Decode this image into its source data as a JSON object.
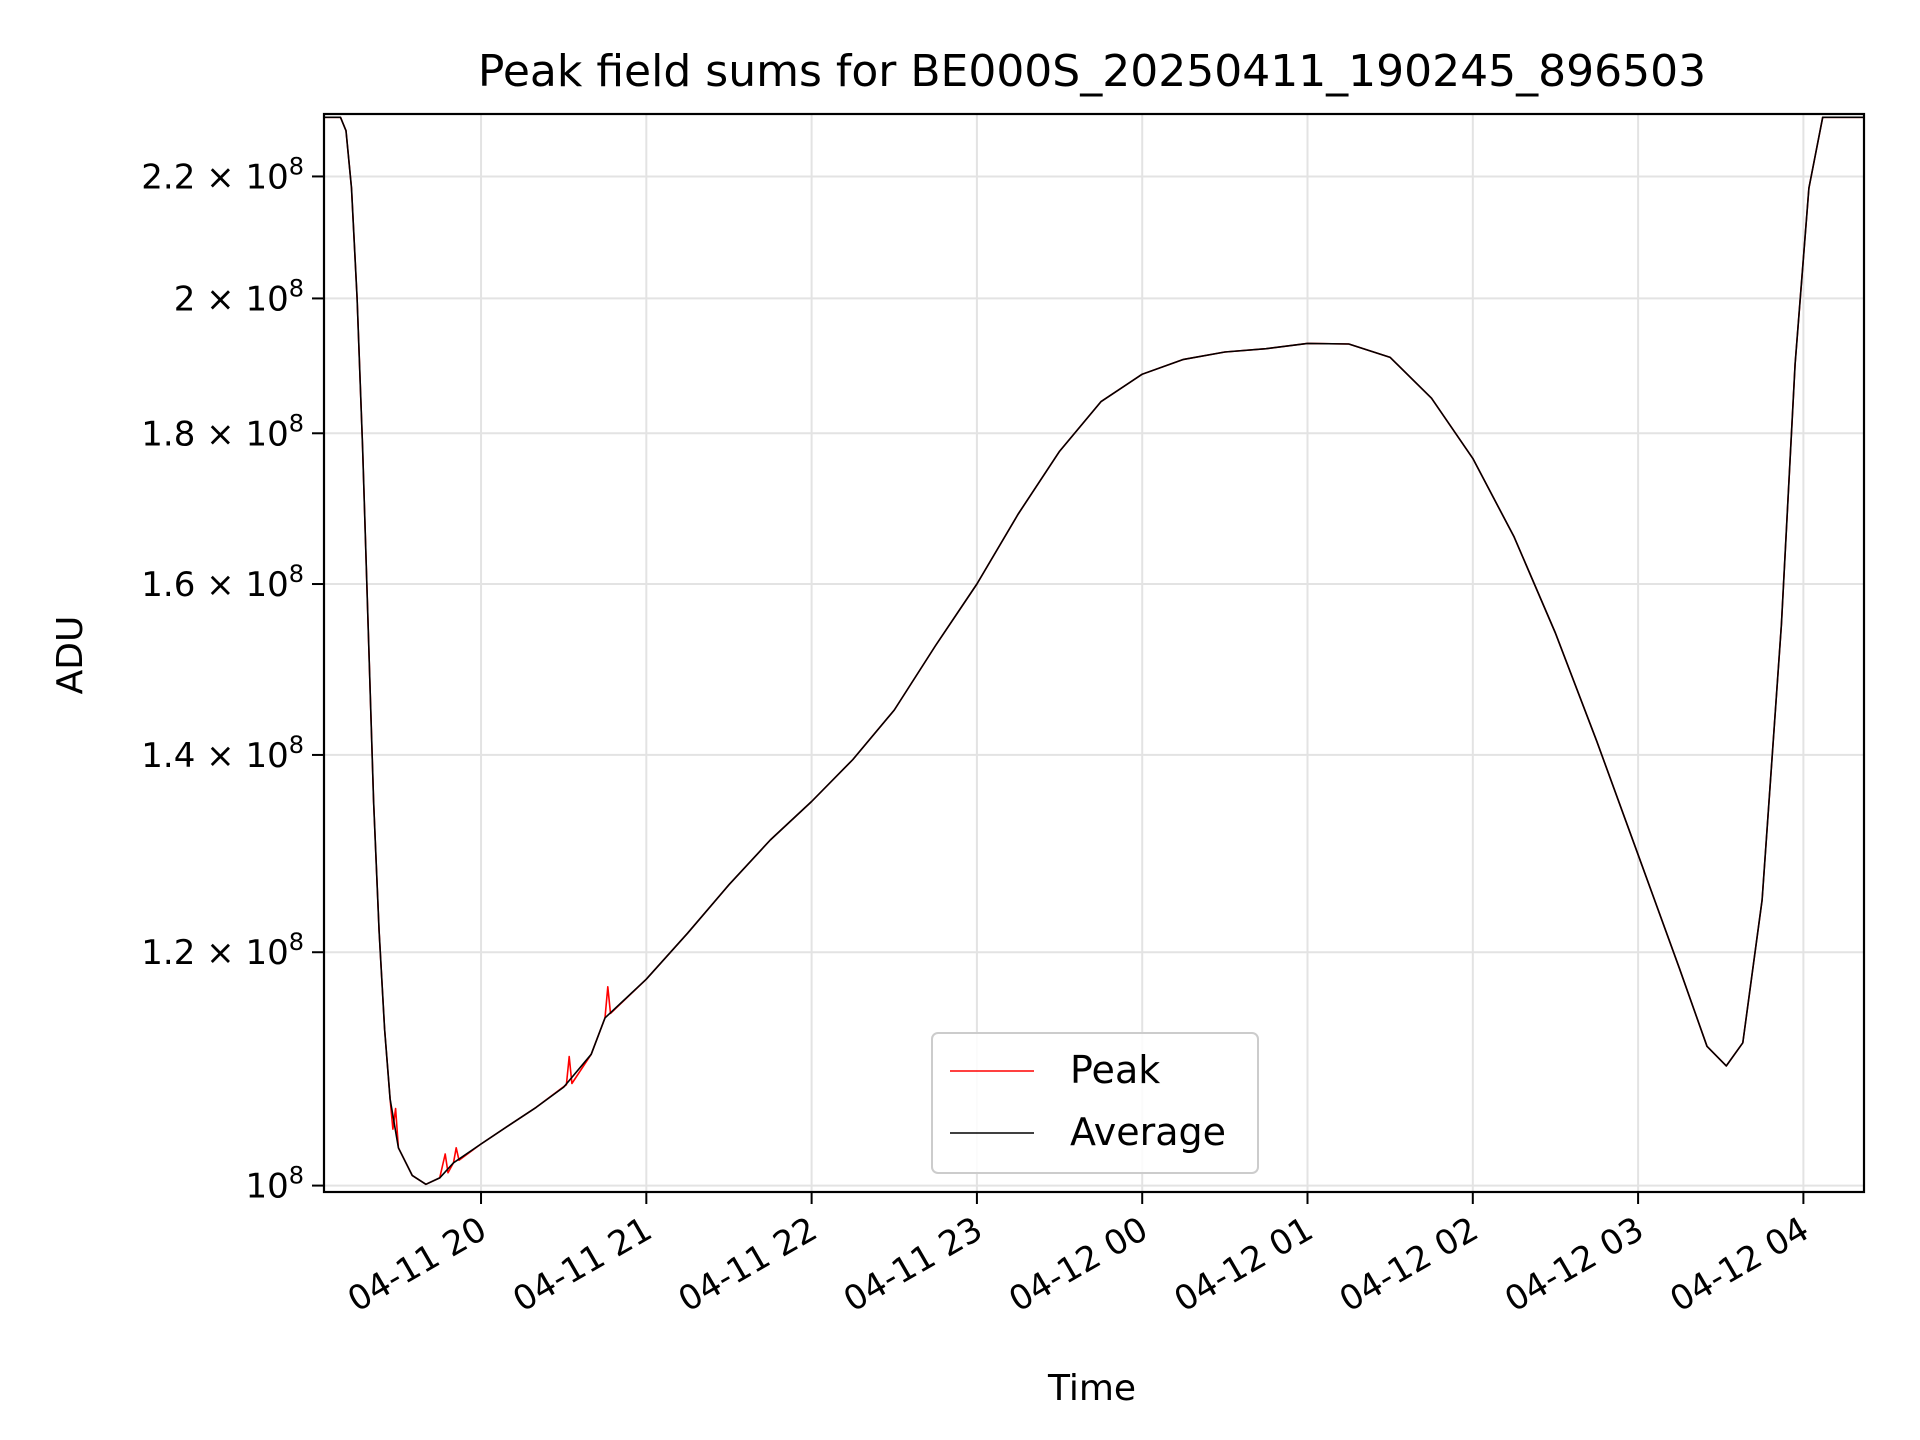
{
  "chart_data": {
    "type": "line",
    "title": "Peak field sums for BE000S_20250411_190245_896503",
    "xlabel": "Time",
    "ylabel": "ADU",
    "yscale": "log",
    "ylim": [
      99500000,
      231000000
    ],
    "xlim": [
      "2025-04-11 19:03",
      "2025-04-12 04:22"
    ],
    "grid": true,
    "legend_position": "lower-center",
    "x_ticks": [
      {
        "t": "2025-04-11 20:00",
        "label": "04-11 20"
      },
      {
        "t": "2025-04-11 21:00",
        "label": "04-11 21"
      },
      {
        "t": "2025-04-11 22:00",
        "label": "04-11 22"
      },
      {
        "t": "2025-04-11 23:00",
        "label": "04-11 23"
      },
      {
        "t": "2025-04-12 00:00",
        "label": "04-12 00"
      },
      {
        "t": "2025-04-12 01:00",
        "label": "04-12 01"
      },
      {
        "t": "2025-04-12 02:00",
        "label": "04-12 02"
      },
      {
        "t": "2025-04-12 03:00",
        "label": "04-12 03"
      },
      {
        "t": "2025-04-12 04:00",
        "label": "04-12 04"
      }
    ],
    "y_ticks": [
      {
        "value": 100000000,
        "mantissa": "",
        "exponent": "8"
      },
      {
        "value": 120000000,
        "mantissa": "1.2",
        "exponent": "8"
      },
      {
        "value": 140000000,
        "mantissa": "1.4",
        "exponent": "8"
      },
      {
        "value": 160000000,
        "mantissa": "1.6",
        "exponent": "8"
      },
      {
        "value": 180000000,
        "mantissa": "1.8",
        "exponent": "8"
      },
      {
        "value": 200000000,
        "mantissa": "2",
        "exponent": "8"
      },
      {
        "value": 220000000,
        "mantissa": "2.2",
        "exponent": "8"
      }
    ],
    "y_tick_base": "10",
    "y_tick_times": "×",
    "series": [
      {
        "name": "Average",
        "color": "#000000",
        "points": [
          [
            "2025-04-11 19:03",
            230400000
          ],
          [
            "2025-04-11 19:09",
            230400000
          ],
          [
            "2025-04-11 19:11",
            228000000
          ],
          [
            "2025-04-11 19:13",
            218000000
          ],
          [
            "2025-04-11 19:15",
            200000000
          ],
          [
            "2025-04-11 19:17",
            178000000
          ],
          [
            "2025-04-11 19:19",
            155000000
          ],
          [
            "2025-04-11 19:21",
            135000000
          ],
          [
            "2025-04-11 19:23",
            122000000
          ],
          [
            "2025-04-11 19:25",
            113000000
          ],
          [
            "2025-04-11 19:27",
            107000000
          ],
          [
            "2025-04-11 19:30",
            103000000
          ],
          [
            "2025-04-11 19:35",
            100800000
          ],
          [
            "2025-04-11 19:40",
            100100000
          ],
          [
            "2025-04-11 19:45",
            100600000
          ],
          [
            "2025-04-11 19:50",
            101800000
          ],
          [
            "2025-04-11 20:00",
            103300000
          ],
          [
            "2025-04-11 20:10",
            104800000
          ],
          [
            "2025-04-11 20:20",
            106300000
          ],
          [
            "2025-04-11 20:30",
            108000000
          ],
          [
            "2025-04-11 20:40",
            110800000
          ],
          [
            "2025-04-11 20:45",
            114000000
          ],
          [
            "2025-04-11 21:00",
            117500000
          ],
          [
            "2025-04-11 21:15",
            121800000
          ],
          [
            "2025-04-11 21:30",
            126500000
          ],
          [
            "2025-04-11 21:45",
            131000000
          ],
          [
            "2025-04-11 22:00",
            135000000
          ],
          [
            "2025-04-11 22:15",
            139500000
          ],
          [
            "2025-04-11 22:30",
            145000000
          ],
          [
            "2025-04-11 22:45",
            152500000
          ],
          [
            "2025-04-11 23:00",
            160000000
          ],
          [
            "2025-04-11 23:15",
            169000000
          ],
          [
            "2025-04-11 23:30",
            177500000
          ],
          [
            "2025-04-11 23:45",
            184500000
          ],
          [
            "2025-04-12 00:00",
            188500000
          ],
          [
            "2025-04-12 00:15",
            190700000
          ],
          [
            "2025-04-12 00:30",
            191800000
          ],
          [
            "2025-04-12 00:45",
            192300000
          ],
          [
            "2025-04-12 01:00",
            193100000
          ],
          [
            "2025-04-12 01:15",
            193000000
          ],
          [
            "2025-04-12 01:30",
            191000000
          ],
          [
            "2025-04-12 01:45",
            185000000
          ],
          [
            "2025-04-12 02:00",
            176500000
          ],
          [
            "2025-04-12 02:15",
            166000000
          ],
          [
            "2025-04-12 02:30",
            154000000
          ],
          [
            "2025-04-12 02:45",
            141500000
          ],
          [
            "2025-04-12 03:00",
            129500000
          ],
          [
            "2025-04-12 03:15",
            118500000
          ],
          [
            "2025-04-12 03:25",
            111500000
          ],
          [
            "2025-04-12 03:32",
            109800000
          ],
          [
            "2025-04-12 03:38",
            111800000
          ],
          [
            "2025-04-12 03:45",
            125000000
          ],
          [
            "2025-04-12 03:52",
            155000000
          ],
          [
            "2025-04-12 03:57",
            190000000
          ],
          [
            "2025-04-12 04:02",
            218000000
          ],
          [
            "2025-04-12 04:07",
            230400000
          ],
          [
            "2025-04-12 04:22",
            230400000
          ]
        ]
      },
      {
        "name": "Peak",
        "color": "#ff0000",
        "points": [
          [
            "2025-04-11 19:03",
            230400000
          ],
          [
            "2025-04-11 19:09",
            230400000
          ],
          [
            "2025-04-11 19:11",
            228000000
          ],
          [
            "2025-04-11 19:13",
            218000000
          ],
          [
            "2025-04-11 19:15",
            200000000
          ],
          [
            "2025-04-11 19:17",
            178000000
          ],
          [
            "2025-04-11 19:19",
            155000000
          ],
          [
            "2025-04-11 19:21",
            135000000
          ],
          [
            "2025-04-11 19:23",
            122000000
          ],
          [
            "2025-04-11 19:25",
            113000000
          ],
          [
            "2025-04-11 19:27",
            107000000
          ],
          [
            "2025-04-11 19:28",
            104500000
          ],
          [
            "2025-04-11 19:29",
            106200000
          ],
          [
            "2025-04-11 19:30",
            103000000
          ],
          [
            "2025-04-11 19:35",
            100800000
          ],
          [
            "2025-04-11 19:40",
            100100000
          ],
          [
            "2025-04-11 19:45",
            100600000
          ],
          [
            "2025-04-11 19:47",
            102500000
          ],
          [
            "2025-04-11 19:48",
            101000000
          ],
          [
            "2025-04-11 19:50",
            101800000
          ],
          [
            "2025-04-11 19:51",
            103000000
          ],
          [
            "2025-04-11 19:52",
            102000000
          ],
          [
            "2025-04-11 20:00",
            103300000
          ],
          [
            "2025-04-11 20:10",
            104800000
          ],
          [
            "2025-04-11 20:20",
            106300000
          ],
          [
            "2025-04-11 20:31",
            108200000
          ],
          [
            "2025-04-11 20:32",
            110600000
          ],
          [
            "2025-04-11 20:33",
            108300000
          ],
          [
            "2025-04-11 20:40",
            110800000
          ],
          [
            "2025-04-11 20:45",
            114000000
          ],
          [
            "2025-04-11 20:46",
            116800000
          ],
          [
            "2025-04-11 20:47",
            114400000
          ],
          [
            "2025-04-11 21:00",
            117500000
          ],
          [
            "2025-04-11 21:15",
            121800000
          ],
          [
            "2025-04-11 21:30",
            126500000
          ],
          [
            "2025-04-11 21:45",
            131000000
          ],
          [
            "2025-04-11 22:00",
            135000000
          ],
          [
            "2025-04-11 22:15",
            139500000
          ],
          [
            "2025-04-11 22:30",
            145000000
          ],
          [
            "2025-04-11 22:45",
            152500000
          ],
          [
            "2025-04-11 23:00",
            160000000
          ],
          [
            "2025-04-11 23:15",
            169000000
          ],
          [
            "2025-04-11 23:30",
            177500000
          ],
          [
            "2025-04-11 23:45",
            184500000
          ],
          [
            "2025-04-12 00:00",
            188500000
          ],
          [
            "2025-04-12 00:15",
            190700000
          ],
          [
            "2025-04-12 00:30",
            191800000
          ],
          [
            "2025-04-12 00:45",
            192300000
          ],
          [
            "2025-04-12 01:00",
            193100000
          ],
          [
            "2025-04-12 01:15",
            193000000
          ],
          [
            "2025-04-12 01:30",
            191000000
          ],
          [
            "2025-04-12 01:45",
            185000000
          ],
          [
            "2025-04-12 02:00",
            176500000
          ],
          [
            "2025-04-12 02:15",
            166000000
          ],
          [
            "2025-04-12 02:30",
            154000000
          ],
          [
            "2025-04-12 02:45",
            141500000
          ],
          [
            "2025-04-12 03:00",
            129500000
          ],
          [
            "2025-04-12 03:15",
            118500000
          ],
          [
            "2025-04-12 03:25",
            111500000
          ],
          [
            "2025-04-12 03:32",
            109800000
          ],
          [
            "2025-04-12 03:38",
            111800000
          ],
          [
            "2025-04-12 03:45",
            125000000
          ],
          [
            "2025-04-12 03:52",
            155000000
          ],
          [
            "2025-04-12 03:57",
            190000000
          ],
          [
            "2025-04-12 04:02",
            218000000
          ],
          [
            "2025-04-12 04:07",
            230400000
          ],
          [
            "2025-04-12 04:22",
            230400000
          ]
        ]
      }
    ],
    "legend": [
      {
        "name": "Peak",
        "color": "#ff0000"
      },
      {
        "name": "Average",
        "color": "#000000"
      }
    ]
  }
}
